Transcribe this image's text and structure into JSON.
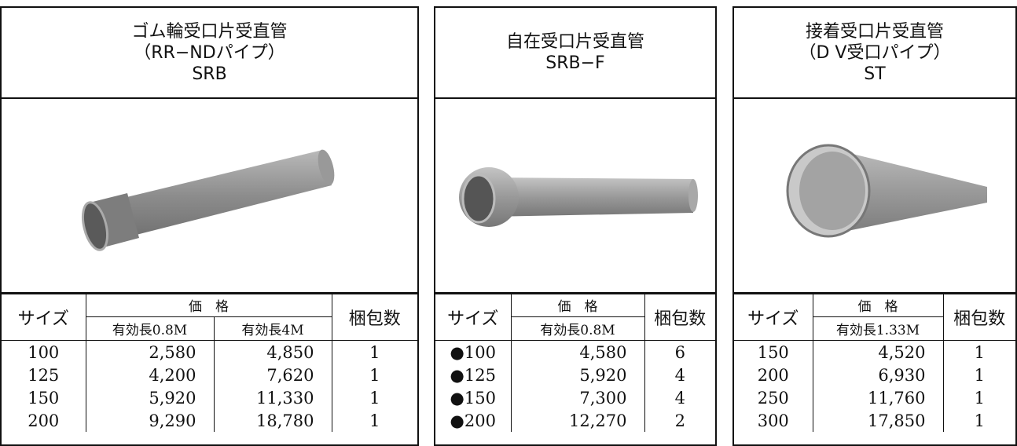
{
  "panels": [
    {
      "title": [
        "ゴム輪受口片受直管",
        "（RR−NDパイプ）",
        "SRB"
      ],
      "table": {
        "header": {
          "size": "サイズ",
          "price": "価　格",
          "lengths": [
            "有効長0.8M",
            "有効長4M"
          ],
          "pack": "梱包数"
        },
        "rows": [
          [
            "100",
            "2,580",
            "4,850",
            "1"
          ],
          [
            "125",
            "4,200",
            "7,620",
            "1"
          ],
          [
            "150",
            "5,920",
            "11,330",
            "1"
          ],
          [
            "200",
            "9,290",
            "18,780",
            "1"
          ]
        ]
      }
    },
    {
      "title": [
        "自在受口片受直管",
        "SRB−F"
      ],
      "table": {
        "header": {
          "size": "サイズ",
          "price": "価　格",
          "lengths": [
            "有効長0.8M"
          ],
          "pack": "梱包数"
        },
        "rows": [
          [
            "●100",
            "4,580",
            "6"
          ],
          [
            "●125",
            "5,920",
            "4"
          ],
          [
            "●150",
            "7,300",
            "4"
          ],
          [
            "●200",
            "12,270",
            "2"
          ]
        ]
      }
    },
    {
      "title": [
        "接着受口片受直管",
        "（D V受口パイプ）",
        "ST"
      ],
      "table": {
        "header": {
          "size": "サイズ",
          "price": "価　格",
          "lengths": [
            "有効長1.33M"
          ],
          "pack": "梱包数"
        },
        "rows": [
          [
            "150",
            "4,520",
            "1"
          ],
          [
            "200",
            "6,930",
            "1"
          ],
          [
            "250",
            "11,760",
            "1"
          ],
          [
            "300",
            "17,850",
            "1"
          ]
        ]
      }
    }
  ]
}
